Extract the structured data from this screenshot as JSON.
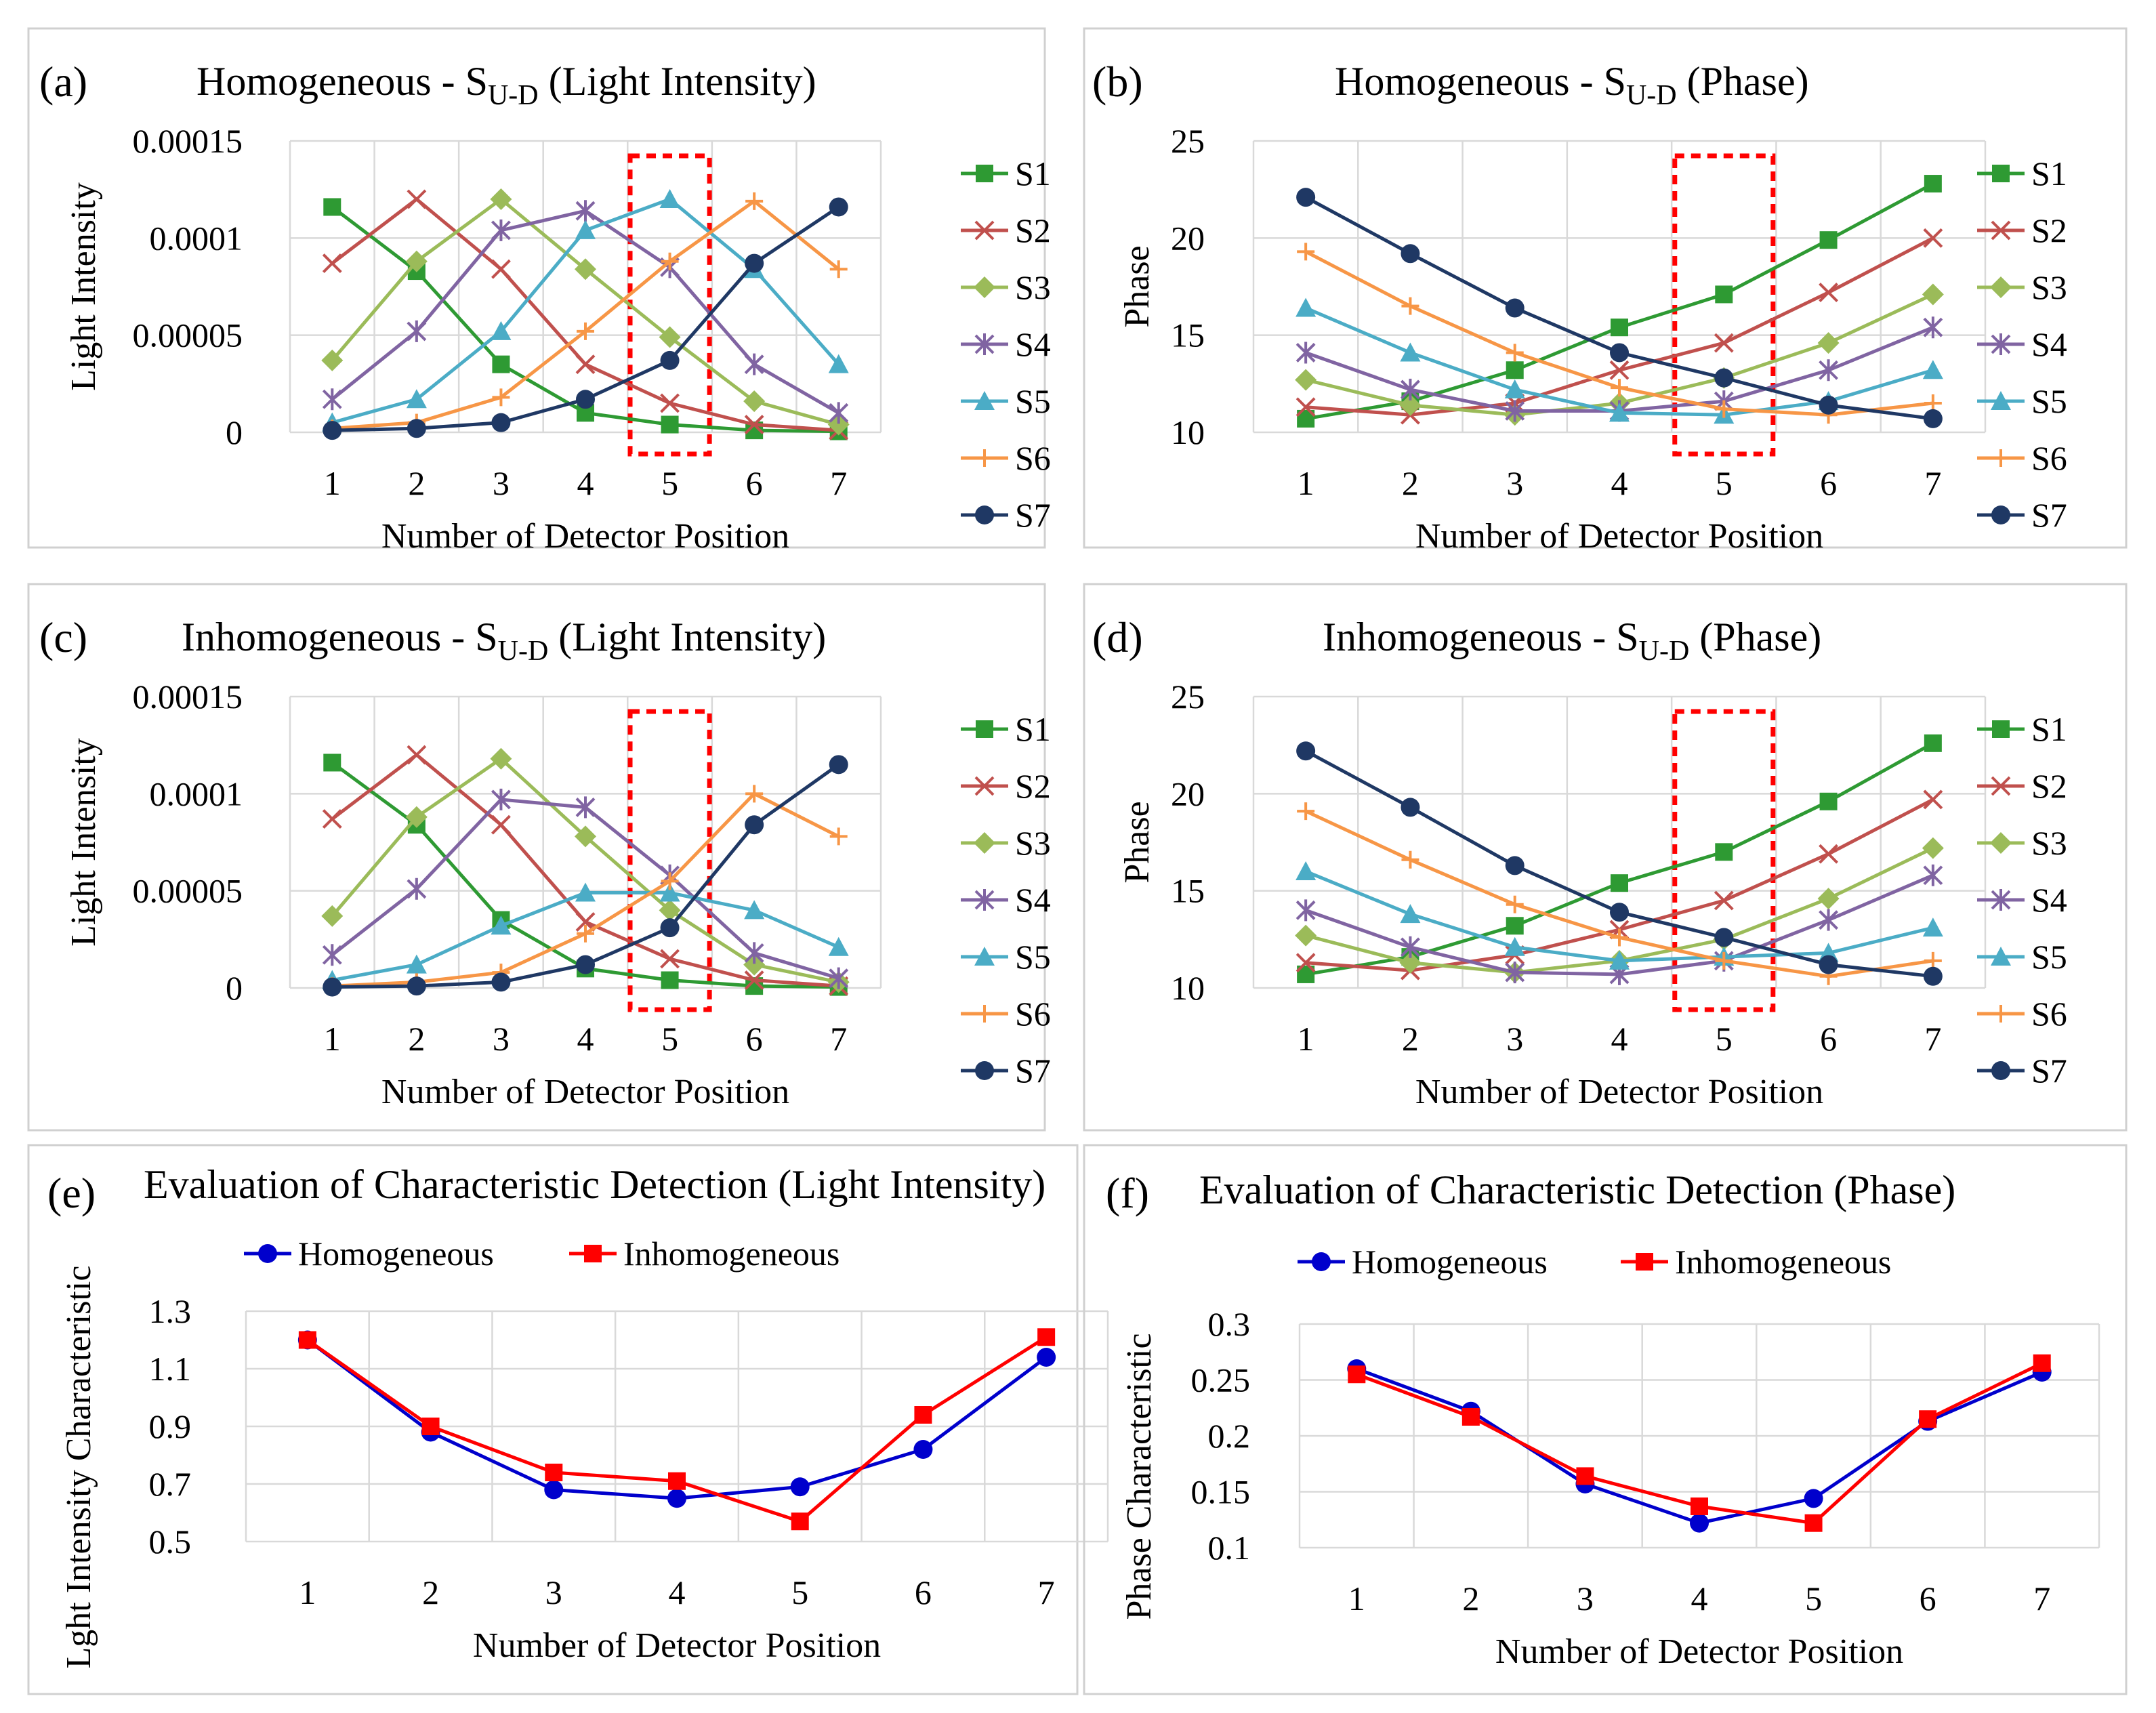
{
  "chart_data": [
    {
      "type": "line",
      "panel_label": "(a)",
      "title": "Homogeneous - S",
      "title_sub": "U-D",
      "title_suffix": " (Light Intensity)",
      "xlabel": "Number of Detector Position",
      "ylabel": "Light Intensity",
      "categories": [
        "1",
        "2",
        "3",
        "4",
        "5",
        "6",
        "7"
      ],
      "ylim": [
        0,
        0.00015
      ],
      "y_ticks": [
        "0",
        "0.00005",
        "0.0001",
        "0.00015"
      ],
      "highlight_category": 5,
      "legend_position": "right",
      "series": [
        {
          "name": "S1",
          "color": "#2e9a33",
          "marker": "square",
          "values": [
            0.000116,
            8.3e-05,
            3.5e-05,
            1e-05,
            4e-06,
            1e-06,
            5e-07
          ]
        },
        {
          "name": "S2",
          "color": "#c0504d",
          "marker": "x",
          "values": [
            8.7e-05,
            0.00012,
            8.4e-05,
            3.5e-05,
            1.5e-05,
            4e-06,
            1e-06
          ]
        },
        {
          "name": "S3",
          "color": "#9bbb59",
          "marker": "diamond",
          "values": [
            3.7e-05,
            8.8e-05,
            0.00012,
            8.4e-05,
            4.9e-05,
            1.6e-05,
            4e-06
          ]
        },
        {
          "name": "S4",
          "color": "#8064a2",
          "marker": "star",
          "values": [
            1.7e-05,
            5.2e-05,
            0.000104,
            0.000114,
            8.5e-05,
            3.5e-05,
            1e-05
          ]
        },
        {
          "name": "S5",
          "color": "#4bacc6",
          "marker": "triangle",
          "values": [
            5e-06,
            1.7e-05,
            5.2e-05,
            0.000104,
            0.00012,
            8.4e-05,
            3.5e-05
          ]
        },
        {
          "name": "S6",
          "color": "#f79646",
          "marker": "plus",
          "values": [
            2e-06,
            5e-06,
            1.8e-05,
            5.2e-05,
            8.8e-05,
            0.000119,
            8.4e-05
          ]
        },
        {
          "name": "S7",
          "color": "#1f3864",
          "marker": "circle",
          "values": [
            1e-06,
            2e-06,
            5e-06,
            1.7e-05,
            3.7e-05,
            8.7e-05,
            0.000116
          ]
        }
      ]
    },
    {
      "type": "line",
      "panel_label": "(b)",
      "title": "Homogeneous - S",
      "title_sub": "U-D",
      "title_suffix": " (Phase)",
      "xlabel": "Number of Detector Position",
      "ylabel": "Phase",
      "categories": [
        "1",
        "2",
        "3",
        "4",
        "5",
        "6",
        "7"
      ],
      "ylim": [
        10,
        25
      ],
      "y_ticks": [
        "10",
        "15",
        "20",
        "25"
      ],
      "highlight_category": 5,
      "legend_position": "right",
      "series": [
        {
          "name": "S1",
          "color": "#2e9a33",
          "marker": "square",
          "values": [
            10.7,
            11.6,
            13.2,
            15.4,
            17.1,
            19.9,
            22.8
          ]
        },
        {
          "name": "S2",
          "color": "#c0504d",
          "marker": "x",
          "values": [
            11.3,
            10.9,
            11.5,
            13.2,
            14.6,
            17.2,
            20.0
          ]
        },
        {
          "name": "S3",
          "color": "#9bbb59",
          "marker": "diamond",
          "values": [
            12.7,
            11.4,
            10.9,
            11.5,
            12.8,
            14.6,
            17.1
          ]
        },
        {
          "name": "S4",
          "color": "#8064a2",
          "marker": "star",
          "values": [
            14.1,
            12.2,
            11.1,
            11.1,
            11.6,
            13.2,
            15.4
          ]
        },
        {
          "name": "S5",
          "color": "#4bacc6",
          "marker": "triangle",
          "values": [
            16.4,
            14.1,
            12.2,
            11.0,
            10.9,
            11.6,
            13.2
          ]
        },
        {
          "name": "S6",
          "color": "#f79646",
          "marker": "plus",
          "values": [
            19.3,
            16.5,
            14.1,
            12.3,
            11.2,
            10.9,
            11.5
          ]
        },
        {
          "name": "S7",
          "color": "#1f3864",
          "marker": "circle",
          "values": [
            22.1,
            19.2,
            16.4,
            14.1,
            12.8,
            11.4,
            10.7
          ]
        }
      ]
    },
    {
      "type": "line",
      "panel_label": "(c)",
      "title": "Inhomogeneous - S",
      "title_sub": "U-D",
      "title_suffix": " (Light Intensity)",
      "xlabel": "Number of Detector Position",
      "ylabel": "Light Intensity",
      "categories": [
        "1",
        "2",
        "3",
        "4",
        "5",
        "6",
        "7"
      ],
      "ylim": [
        0,
        0.00015
      ],
      "y_ticks": [
        "0",
        "0.00005",
        "0.0001",
        "0.00015"
      ],
      "highlight_category": 5,
      "legend_position": "right",
      "series": [
        {
          "name": "S1",
          "color": "#2e9a33",
          "marker": "square",
          "values": [
            0.000116,
            8.4e-05,
            3.5e-05,
            1e-05,
            4e-06,
            1e-06,
            5e-07
          ]
        },
        {
          "name": "S2",
          "color": "#c0504d",
          "marker": "x",
          "values": [
            8.7e-05,
            0.00012,
            8.4e-05,
            3.4e-05,
            1.5e-05,
            4e-06,
            1e-06
          ]
        },
        {
          "name": "S3",
          "color": "#9bbb59",
          "marker": "diamond",
          "values": [
            3.7e-05,
            8.8e-05,
            0.000118,
            7.8e-05,
            4e-05,
            1.2e-05,
            3e-06
          ]
        },
        {
          "name": "S4",
          "color": "#8064a2",
          "marker": "star",
          "values": [
            1.7e-05,
            5.1e-05,
            9.7e-05,
            9.3e-05,
            5.8e-05,
            1.8e-05,
            5e-06
          ]
        },
        {
          "name": "S5",
          "color": "#4bacc6",
          "marker": "triangle",
          "values": [
            4e-06,
            1.2e-05,
            3.2e-05,
            4.9e-05,
            4.9e-05,
            4e-05,
            2.1e-05
          ]
        },
        {
          "name": "S6",
          "color": "#f79646",
          "marker": "plus",
          "values": [
            1e-06,
            3e-06,
            8e-06,
            2.8e-05,
            5.5e-05,
            0.0001,
            7.8e-05
          ]
        },
        {
          "name": "S7",
          "color": "#1f3864",
          "marker": "circle",
          "values": [
            5e-07,
            1e-06,
            3e-06,
            1.2e-05,
            3.1e-05,
            8.4e-05,
            0.000115
          ]
        }
      ]
    },
    {
      "type": "line",
      "panel_label": "(d)",
      "title": "Inhomogeneous - S",
      "title_sub": "U-D",
      "title_suffix": " (Phase)",
      "xlabel": "Number of Detector Position",
      "ylabel": "Phase",
      "categories": [
        "1",
        "2",
        "3",
        "4",
        "5",
        "6",
        "7"
      ],
      "ylim": [
        10,
        25
      ],
      "y_ticks": [
        "10",
        "15",
        "20",
        "25"
      ],
      "highlight_category": 5,
      "legend_position": "right",
      "series": [
        {
          "name": "S1",
          "color": "#2e9a33",
          "marker": "square",
          "values": [
            10.7,
            11.6,
            13.2,
            15.4,
            17.0,
            19.6,
            22.6
          ]
        },
        {
          "name": "S2",
          "color": "#c0504d",
          "marker": "x",
          "values": [
            11.3,
            10.9,
            11.7,
            13.0,
            14.5,
            16.9,
            19.7
          ]
        },
        {
          "name": "S3",
          "color": "#9bbb59",
          "marker": "diamond",
          "values": [
            12.7,
            11.3,
            10.8,
            11.4,
            12.5,
            14.6,
            17.2
          ]
        },
        {
          "name": "S4",
          "color": "#8064a2",
          "marker": "star",
          "values": [
            14.0,
            12.1,
            10.8,
            10.7,
            11.4,
            13.5,
            15.8
          ]
        },
        {
          "name": "S5",
          "color": "#4bacc6",
          "marker": "triangle",
          "values": [
            16.0,
            13.8,
            12.1,
            11.4,
            11.6,
            11.8,
            13.1
          ]
        },
        {
          "name": "S6",
          "color": "#f79646",
          "marker": "plus",
          "values": [
            19.1,
            16.6,
            14.3,
            12.6,
            11.4,
            10.6,
            11.4
          ]
        },
        {
          "name": "S7",
          "color": "#1f3864",
          "marker": "circle",
          "values": [
            22.2,
            19.3,
            16.3,
            13.9,
            12.6,
            11.2,
            10.6
          ]
        }
      ]
    },
    {
      "type": "line",
      "panel_label": "(e)",
      "title": "Evaluation of Characteristic Detection (Light Intensity)",
      "xlabel": "Number of Detector Position",
      "ylabel": "Lght Intensity Characteristic",
      "categories": [
        "1",
        "2",
        "3",
        "4",
        "5",
        "6",
        "7"
      ],
      "ylim": [
        0.5,
        1.3
      ],
      "y_ticks": [
        "0.5",
        "0.7",
        "0.9",
        "1.1",
        "1.3"
      ],
      "legend_position": "top",
      "series": [
        {
          "name": "Homogeneous",
          "color": "#0000cc",
          "marker": "circle",
          "values": [
            1.2,
            0.88,
            0.68,
            0.65,
            0.69,
            0.82,
            1.14
          ]
        },
        {
          "name": "Inhomogeneous",
          "color": "#ff0000",
          "marker": "square",
          "values": [
            1.2,
            0.9,
            0.74,
            0.71,
            0.57,
            0.94,
            1.21
          ]
        }
      ]
    },
    {
      "type": "line",
      "panel_label": "(f)",
      "title": "Evaluation of Characteristic Detection (Phase)",
      "xlabel": "Number of Detector Position",
      "ylabel": "Phase Characteristic",
      "categories": [
        "1",
        "2",
        "3",
        "4",
        "5",
        "6",
        "7"
      ],
      "ylim": [
        0.1,
        0.3
      ],
      "y_ticks": [
        "0.1",
        "0.15",
        "0.2",
        "0.25",
        "0.3"
      ],
      "legend_position": "top",
      "series": [
        {
          "name": "Homogeneous",
          "color": "#0000cc",
          "marker": "circle",
          "values": [
            0.26,
            0.222,
            0.157,
            0.122,
            0.144,
            0.213,
            0.257
          ]
        },
        {
          "name": "Inhomogeneous",
          "color": "#ff0000",
          "marker": "square",
          "values": [
            0.255,
            0.217,
            0.164,
            0.137,
            0.122,
            0.215,
            0.265
          ]
        }
      ]
    }
  ]
}
